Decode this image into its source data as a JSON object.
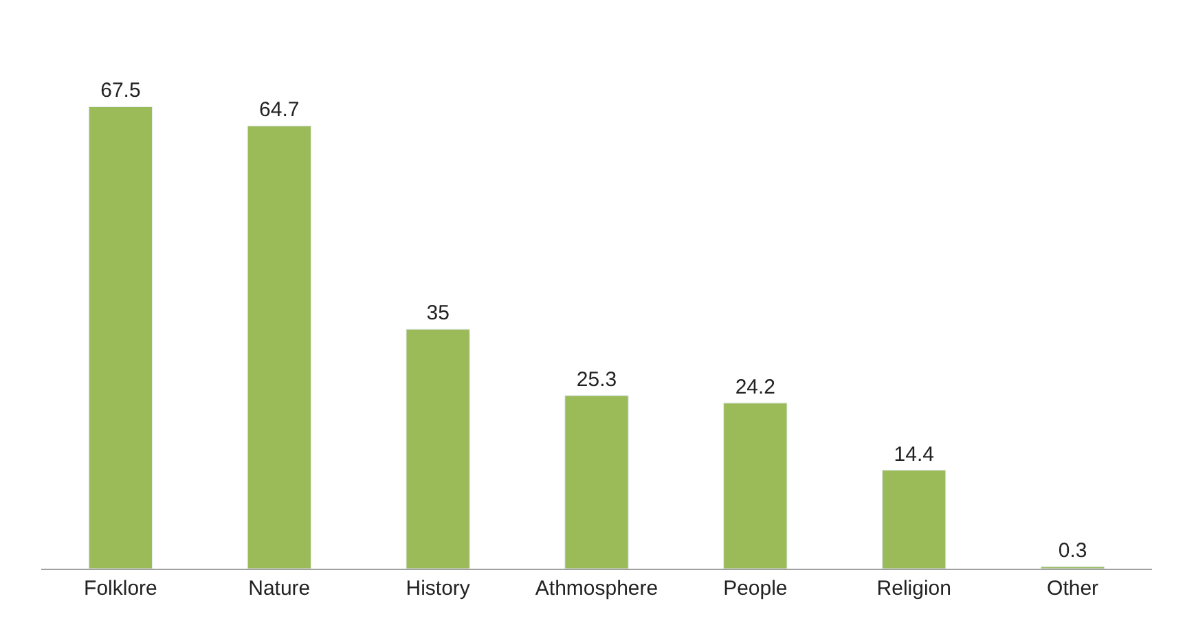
{
  "chart_data": {
    "type": "bar",
    "categories": [
      "Folklore",
      "Nature",
      "History",
      "Athmosphere",
      "People",
      "Religion",
      "Other"
    ],
    "values": [
      67.5,
      64.7,
      35,
      25.3,
      24.2,
      14.4,
      0.3
    ],
    "color": "#9bbb59",
    "data_labels": true,
    "tick_labels": "x"
  }
}
